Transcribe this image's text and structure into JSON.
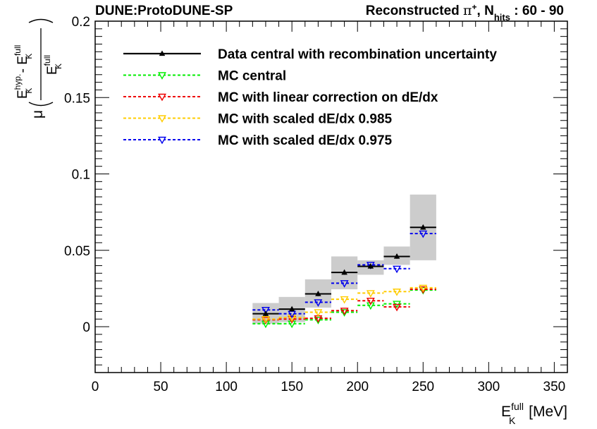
{
  "header": {
    "experiment": "DUNE:ProtoDUNE-SP",
    "title_prefix": "Reconstructed ",
    "particle": "π",
    "particle_charge": "+",
    "title_sep": ", N",
    "nhits_sub": "hits",
    "range": " : 60 - 90"
  },
  "axes": {
    "x_label_main": "E",
    "x_label_sup": "full",
    "x_label_sub": "K",
    "x_label_unit": " [MeV]",
    "y_label_mu": "μ",
    "y_num_E1": "E",
    "y_num_sup1": "hyp.",
    "y_num_sub1": "K",
    "y_num_minus": " - ",
    "y_num_E2": "E",
    "y_num_sup2": "full",
    "y_num_sub2": "K",
    "y_den_E": "E",
    "y_den_sup": "full",
    "y_den_sub": "K"
  },
  "colors": {
    "data": "#000000",
    "band": "#cccccc",
    "mc_central": "#00ee00",
    "mc_linear": "#ee0000",
    "mc_0985": "#ffcc00",
    "mc_0975": "#0000ee"
  },
  "chart_data": {
    "type": "scatter",
    "title": "Reconstructed π+, Nhits : 60 - 90",
    "xlabel": "E_K^full [MeV]",
    "ylabel": "μ((E_K^hyp. - E_K^full)/E_K^full)",
    "xlim": [
      0,
      360
    ],
    "ylim": [
      -0.03,
      0.2
    ],
    "x_ticks": [
      0,
      50,
      100,
      150,
      200,
      250,
      300,
      350
    ],
    "y_ticks": [
      0,
      0.05,
      0.1,
      0.15,
      0.2
    ],
    "y_tick_labels": [
      "0",
      "0.05",
      "0.1",
      "0.15",
      "0.2"
    ],
    "bins": [
      [
        120,
        140
      ],
      [
        140,
        160
      ],
      [
        160,
        180
      ],
      [
        180,
        200
      ],
      [
        200,
        220
      ],
      [
        220,
        240
      ],
      [
        240,
        260
      ]
    ],
    "x": [
      130,
      150,
      170,
      190,
      210,
      230,
      250
    ],
    "series": [
      {
        "name": "Data central with recombination uncertainty",
        "color_key": "data",
        "marker": "triangle-up",
        "line": "solid",
        "values": [
          0.0085,
          0.0115,
          0.0215,
          0.0355,
          0.0395,
          0.046,
          0.065
        ],
        "errors": [
          0.0015,
          0.0015,
          0.0015,
          0.0015,
          0.0015,
          0.0015,
          0.0015
        ],
        "band_low": [
          0.002,
          0.003,
          0.0125,
          0.0245,
          0.034,
          0.0405,
          0.0435
        ],
        "band_high": [
          0.0155,
          0.0195,
          0.031,
          0.046,
          0.0435,
          0.0525,
          0.0865
        ]
      },
      {
        "name": "MC central",
        "color_key": "mc_central",
        "marker": "triangle-down",
        "line": "dashed",
        "values": [
          0.002,
          0.002,
          0.0045,
          0.0095,
          0.014,
          0.015,
          0.024
        ]
      },
      {
        "name": "MC with linear correction on dE/dx",
        "color_key": "mc_linear",
        "marker": "triangle-down",
        "line": "dashed",
        "values": [
          0.0045,
          0.005,
          0.0055,
          0.0105,
          0.017,
          0.013,
          0.0245
        ]
      },
      {
        "name": "MC with scaled dE/dx 0.985",
        "color_key": "mc_0985",
        "marker": "triangle-down",
        "line": "dashed",
        "values": [
          0.005,
          0.006,
          0.0095,
          0.018,
          0.022,
          0.023,
          0.0255
        ]
      },
      {
        "name": "MC with scaled dE/dx 0.975",
        "color_key": "mc_0975",
        "marker": "triangle-down",
        "line": "dashed",
        "values": [
          0.011,
          0.0085,
          0.016,
          0.0285,
          0.0405,
          0.038,
          0.061
        ]
      }
    ],
    "legend_position": "top-left",
    "grid": false
  }
}
